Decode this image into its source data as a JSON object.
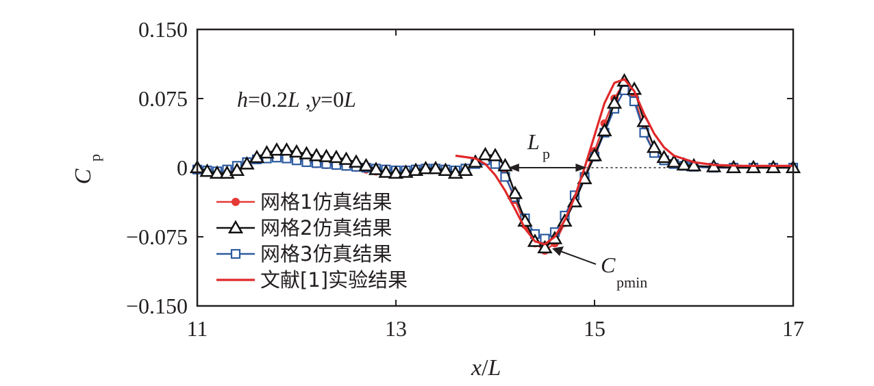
{
  "chart_data": {
    "type": "line",
    "xlabel": {
      "main": "x",
      "sep": "/",
      "sub": "L"
    },
    "ylabel": {
      "main": "C",
      "sub": "p"
    },
    "xlim": [
      11,
      17
    ],
    "ylim": [
      -0.15,
      0.15
    ],
    "xticks": [
      11,
      13,
      15,
      17
    ],
    "xtick_labels": [
      "11",
      "13",
      "15",
      "17"
    ],
    "yticks": [
      0.15,
      0.075,
      0,
      -0.075,
      -0.15
    ],
    "ytick_labels": [
      "0.150",
      "0.075",
      "0",
      "−0.075",
      "−0.150"
    ],
    "grid": false,
    "legend_position": "lower-left",
    "annotations": {
      "condition": {
        "h": "h",
        "eq1": "=0.2",
        "L1": "L",
        "comma": " ,",
        "y": "y",
        "eq2": "=0",
        "L2": "L"
      },
      "lp": {
        "main": "L",
        "sub": "p"
      },
      "cpmin": {
        "main": "C",
        "sub": "pmin"
      }
    },
    "zero_reference": {
      "from": 14.1,
      "to": 16.4
    },
    "series": [
      {
        "name": "网格1仿真结果",
        "color": "#e53935",
        "marker": "circle",
        "x": [
          11.0,
          11.1,
          11.2,
          11.3,
          11.4,
          11.5,
          11.6,
          11.7,
          11.8,
          11.9,
          12.0,
          12.1,
          12.2,
          12.3,
          12.4,
          12.5,
          12.6,
          12.7,
          12.8,
          12.9,
          13.0,
          13.1,
          13.2,
          13.3,
          13.4,
          13.5,
          13.6,
          13.7,
          13.8,
          13.9,
          14.0,
          14.1,
          14.2,
          14.3,
          14.4,
          14.5,
          14.6,
          14.7,
          14.8,
          14.9,
          15.0,
          15.1,
          15.2,
          15.3,
          15.4,
          15.5,
          15.6,
          15.7,
          15.8,
          15.9,
          16.0,
          16.2,
          16.4,
          16.6,
          16.8,
          17.0
        ],
        "y": [
          -0.003,
          -0.005,
          -0.006,
          -0.004,
          0.0,
          0.005,
          0.009,
          0.012,
          0.014,
          0.013,
          0.01,
          0.007,
          0.004,
          0.003,
          0.002,
          0.001,
          0.0,
          -0.002,
          -0.004,
          -0.006,
          -0.007,
          -0.006,
          -0.004,
          -0.002,
          -0.002,
          -0.004,
          -0.006,
          -0.003,
          0.004,
          0.01,
          0.006,
          -0.008,
          -0.035,
          -0.062,
          -0.082,
          -0.09,
          -0.082,
          -0.06,
          -0.035,
          -0.01,
          0.018,
          0.048,
          0.075,
          0.093,
          0.078,
          0.04,
          0.016,
          0.008,
          0.004,
          0.002,
          0.001,
          0.0,
          0.0,
          0.0,
          0.0,
          0.0
        ]
      },
      {
        "name": "网格2仿真结果",
        "color": "#111111",
        "marker": "triangle",
        "x": [
          11.0,
          11.1,
          11.2,
          11.3,
          11.4,
          11.5,
          11.6,
          11.7,
          11.8,
          11.9,
          12.0,
          12.1,
          12.2,
          12.3,
          12.4,
          12.5,
          12.6,
          12.7,
          12.8,
          12.9,
          13.0,
          13.1,
          13.2,
          13.3,
          13.4,
          13.5,
          13.6,
          13.7,
          13.8,
          13.9,
          14.0,
          14.1,
          14.2,
          14.3,
          14.4,
          14.5,
          14.6,
          14.7,
          14.8,
          14.9,
          15.0,
          15.1,
          15.2,
          15.3,
          15.4,
          15.5,
          15.6,
          15.7,
          15.8,
          15.9,
          16.0,
          16.2,
          16.4,
          16.6,
          16.8,
          17.0
        ],
        "y": [
          0.0,
          -0.004,
          -0.006,
          -0.006,
          -0.003,
          0.004,
          0.011,
          0.016,
          0.019,
          0.019,
          0.017,
          0.015,
          0.013,
          0.012,
          0.011,
          0.009,
          0.006,
          0.002,
          -0.002,
          -0.005,
          -0.006,
          -0.005,
          -0.003,
          -0.001,
          -0.001,
          -0.003,
          -0.006,
          -0.003,
          0.006,
          0.014,
          0.013,
          0.002,
          -0.028,
          -0.058,
          -0.08,
          -0.087,
          -0.077,
          -0.058,
          -0.037,
          -0.012,
          0.013,
          0.04,
          0.07,
          0.094,
          0.085,
          0.05,
          0.022,
          0.011,
          0.006,
          0.003,
          0.002,
          0.001,
          0.0,
          0.0,
          0.0,
          0.0
        ]
      },
      {
        "name": "网格3仿真结果",
        "color": "#2c5aa0",
        "marker": "square",
        "x": [
          11.0,
          11.1,
          11.2,
          11.3,
          11.4,
          11.5,
          11.6,
          11.7,
          11.8,
          11.9,
          12.0,
          12.1,
          12.2,
          12.3,
          12.4,
          12.5,
          12.6,
          12.7,
          12.8,
          12.9,
          13.0,
          13.1,
          13.2,
          13.3,
          13.4,
          13.5,
          13.6,
          13.7,
          13.8,
          13.9,
          14.0,
          14.1,
          14.2,
          14.3,
          14.4,
          14.5,
          14.6,
          14.7,
          14.8,
          14.9,
          15.0,
          15.1,
          15.2,
          15.3,
          15.4,
          15.5,
          15.6,
          15.7,
          15.8,
          15.9,
          16.0,
          16.2,
          16.4,
          16.6,
          16.8,
          17.0
        ],
        "y": [
          -0.002,
          -0.003,
          -0.004,
          -0.002,
          0.002,
          0.006,
          0.009,
          0.01,
          0.011,
          0.01,
          0.008,
          0.006,
          0.005,
          0.004,
          0.003,
          0.002,
          0.001,
          0.0,
          -0.001,
          -0.002,
          -0.003,
          -0.003,
          -0.002,
          -0.001,
          -0.001,
          -0.002,
          -0.003,
          -0.001,
          0.004,
          0.008,
          0.004,
          -0.01,
          -0.032,
          -0.055,
          -0.072,
          -0.077,
          -0.07,
          -0.052,
          -0.03,
          -0.01,
          0.012,
          0.038,
          0.064,
          0.084,
          0.072,
          0.038,
          0.016,
          0.008,
          0.004,
          0.002,
          0.001,
          0.0,
          0.0,
          0.0,
          0.0,
          0.0
        ]
      },
      {
        "name": "文献[1]实验结果",
        "color": "#e0282a",
        "marker": "none",
        "x": [
          13.6,
          13.8,
          13.9,
          14.0,
          14.1,
          14.2,
          14.3,
          14.4,
          14.5,
          14.6,
          14.7,
          14.8,
          14.9,
          15.0,
          15.1,
          15.2,
          15.3,
          15.4,
          15.5,
          15.6,
          15.7,
          15.8,
          16.0,
          16.2,
          16.5,
          17.0
        ],
        "y": [
          0.013,
          0.01,
          0.004,
          -0.008,
          -0.025,
          -0.045,
          -0.066,
          -0.08,
          -0.083,
          -0.075,
          -0.057,
          -0.032,
          0.0,
          0.035,
          0.07,
          0.092,
          0.096,
          0.083,
          0.058,
          0.037,
          0.022,
          0.013,
          0.006,
          0.003,
          0.002,
          0.002
        ]
      }
    ]
  }
}
